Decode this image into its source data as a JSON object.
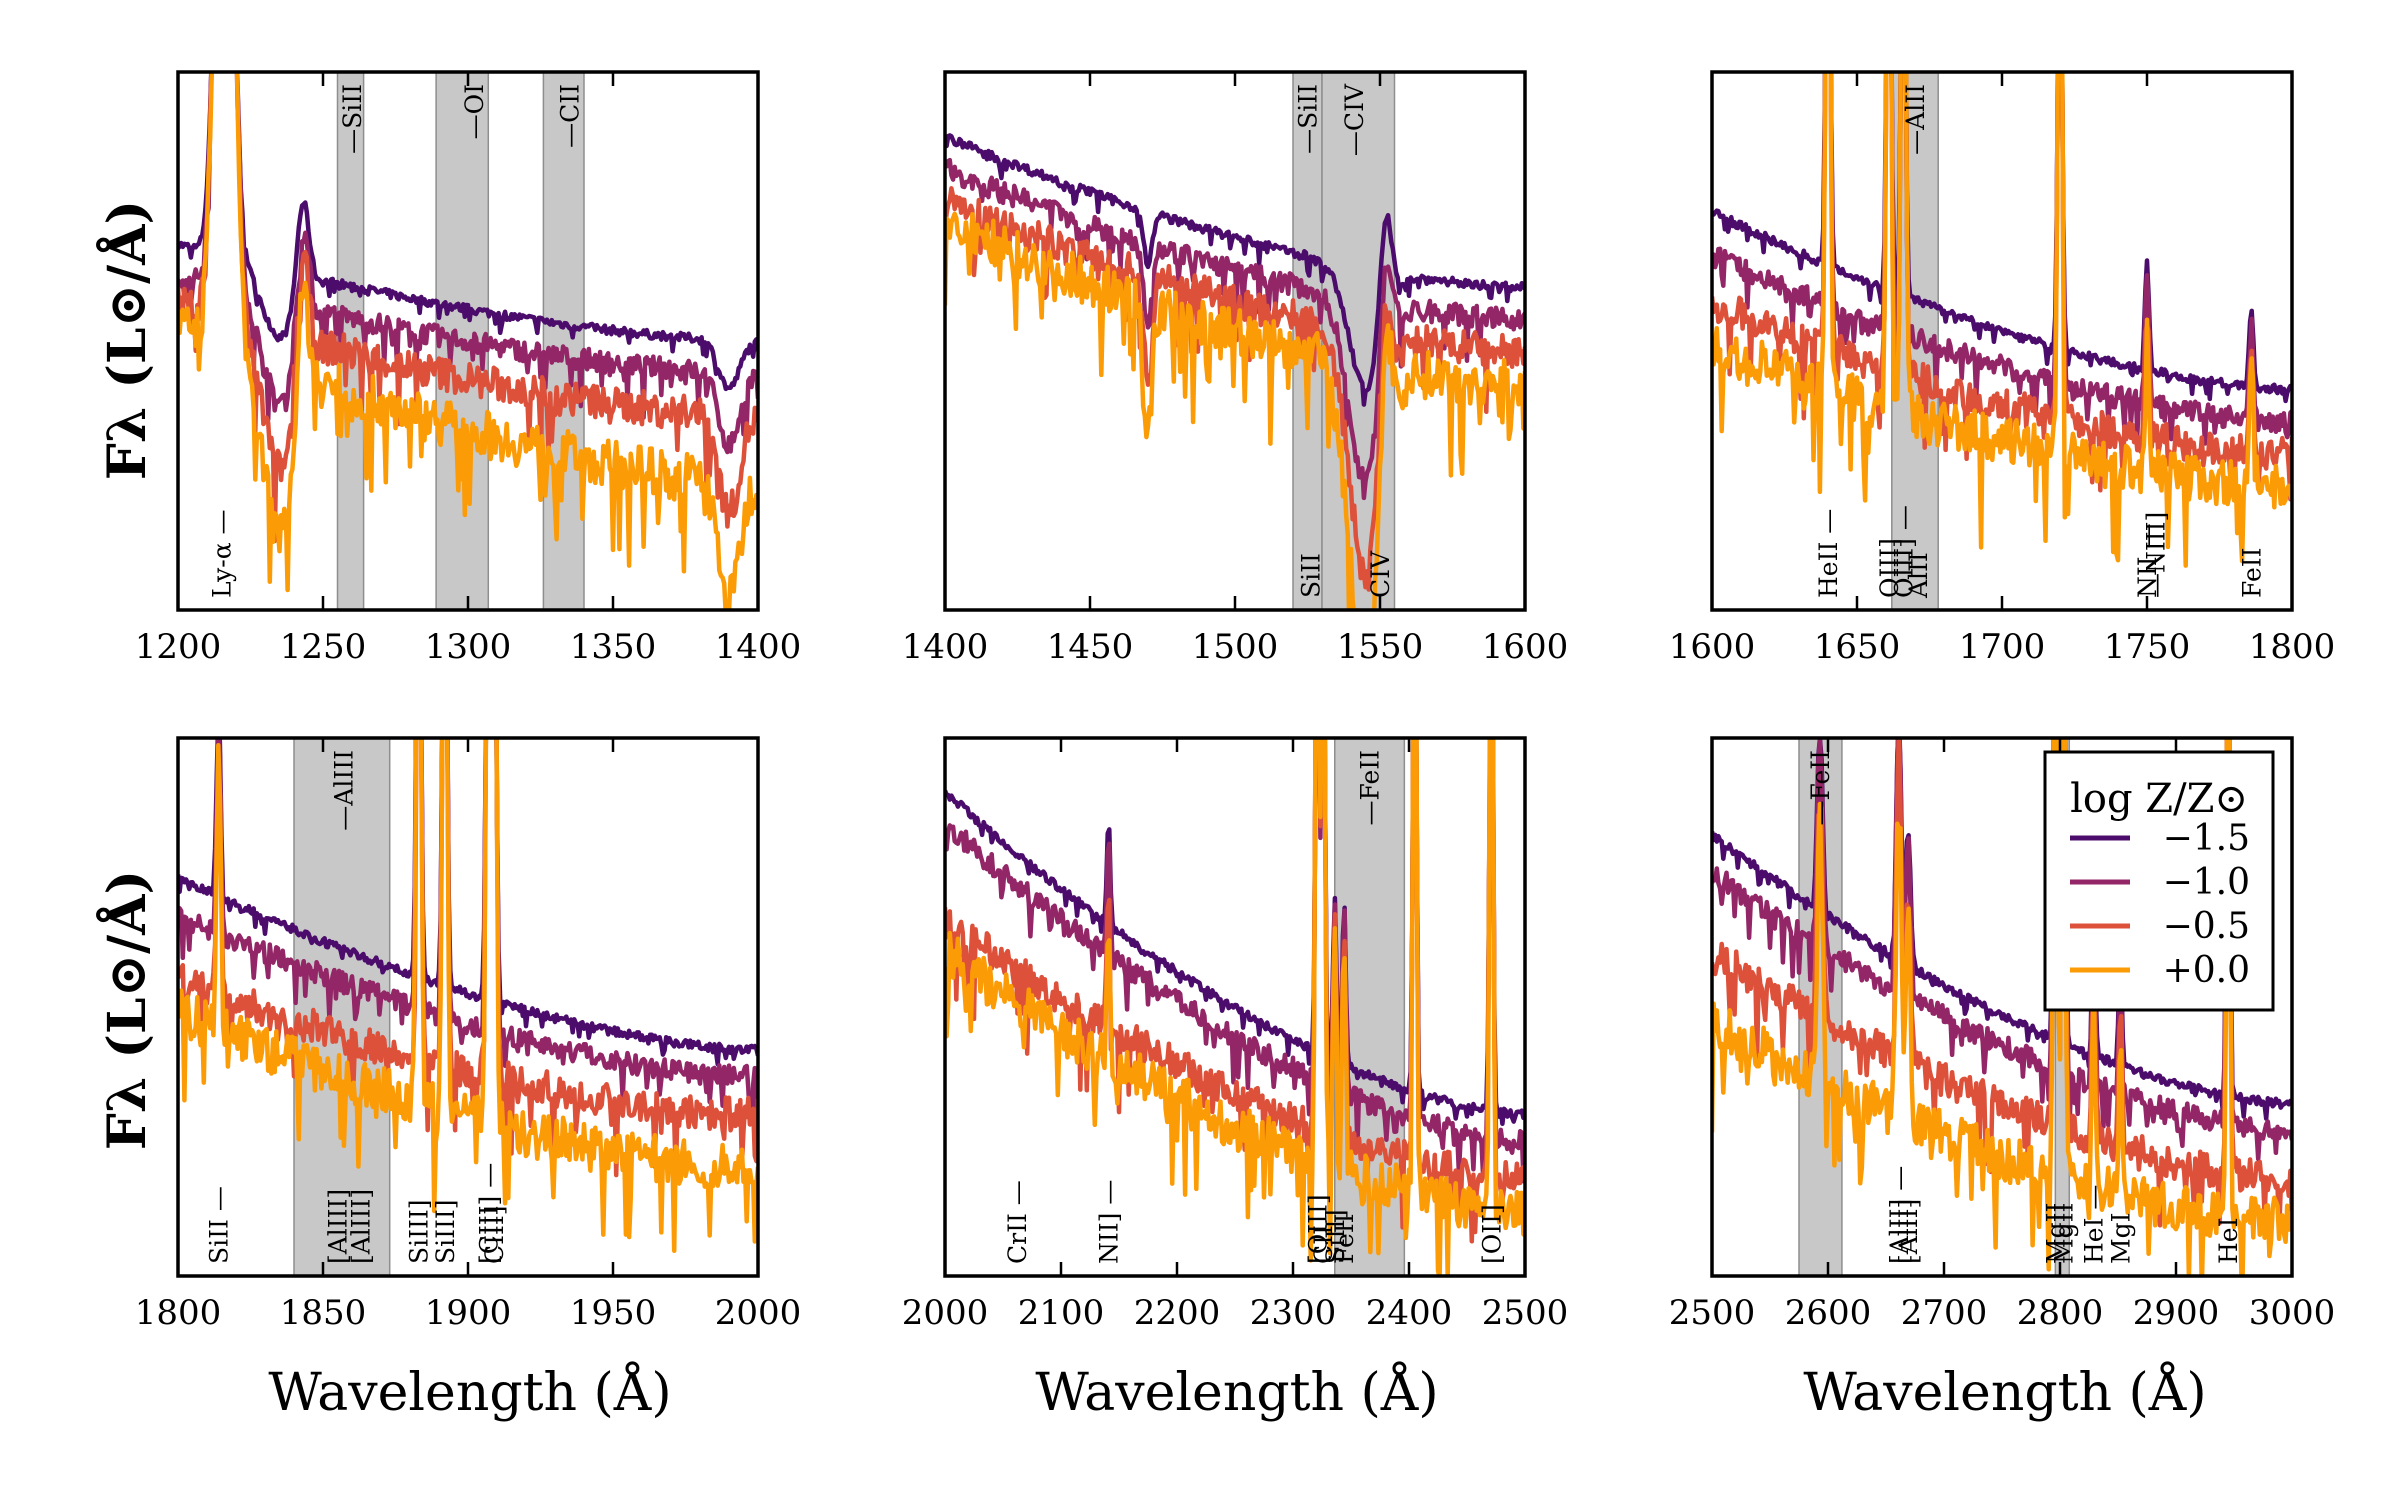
{
  "figure": {
    "y_axis_label": "Fλ (L⊙/Å)",
    "x_axis_label": "Wavelength (Å)"
  },
  "legend": {
    "title": "log Z/Z⊙",
    "entries": [
      {
        "label": "−1.5",
        "color": "#4b0c6b"
      },
      {
        "label": "−1.0",
        "color": "#932667"
      },
      {
        "label": "−0.5",
        "color": "#dd513a"
      },
      {
        "label": "+0.0",
        "color": "#fb9b06"
      }
    ]
  },
  "chart_data": [
    {
      "type": "line",
      "panel": 1,
      "xlim": [
        1200,
        1400
      ],
      "ylim": [
        0,
        1
      ],
      "xticks": [
        "1200",
        "1250",
        "1300",
        "1350",
        "1400"
      ],
      "bands": [
        [
          1255,
          1264
        ],
        [
          1289,
          1307
        ],
        [
          1326,
          1340
        ]
      ],
      "top_labels": [
        {
          "x": 1260,
          "text": "—SiII"
        },
        {
          "x": 1302,
          "text": "—OI"
        },
        {
          "x": 1335,
          "text": "—CII"
        }
      ],
      "bottom_labels": [
        {
          "x": 1215,
          "text": "Ly-α —"
        }
      ],
      "series": [
        {
          "name": "−1.5",
          "start": 0.68,
          "end": 0.5
        },
        {
          "name": "−1.0",
          "start": 0.62,
          "end": 0.44
        },
        {
          "name": "−0.5",
          "start": 0.57,
          "end": 0.36
        },
        {
          "name": "+0.0",
          "start": 0.53,
          "end": 0.24
        }
      ],
      "features": [
        {
          "x": 1216,
          "height": 1.2,
          "width": 4
        },
        {
          "x": 1235,
          "height": -0.25,
          "width": 8
        },
        {
          "x": 1243,
          "height": 0.18,
          "width": 3
        },
        {
          "x": 1390,
          "height": -0.18,
          "width": 5
        }
      ]
    },
    {
      "type": "line",
      "panel": 2,
      "xlim": [
        1400,
        1600
      ],
      "ylim": [
        0,
        1
      ],
      "xticks": [
        "1400",
        "1450",
        "1500",
        "1550",
        "1600"
      ],
      "bands": [
        [
          1520,
          1530
        ],
        [
          1530,
          1555
        ]
      ],
      "top_labels": [
        {
          "x": 1525,
          "text": "—SiII"
        },
        {
          "x": 1541,
          "text": "—CIV"
        }
      ],
      "bottom_labels": [
        {
          "x": 1526,
          "text": "SiII"
        },
        {
          "x": 1550,
          "text": "CIV"
        }
      ],
      "series": [
        {
          "name": "−1.5",
          "start": 0.88,
          "end": 0.6
        },
        {
          "name": "−1.0",
          "start": 0.82,
          "end": 0.54
        },
        {
          "name": "−0.5",
          "start": 0.76,
          "end": 0.48
        },
        {
          "name": "+0.0",
          "start": 0.72,
          "end": 0.42
        }
      ],
      "features": [
        {
          "x": 1545,
          "height": -0.45,
          "width": 8
        },
        {
          "x": 1552,
          "height": 0.2,
          "width": 3
        },
        {
          "x": 1470,
          "height": -0.2,
          "width": 2
        }
      ]
    },
    {
      "type": "line",
      "panel": 3,
      "xlim": [
        1600,
        1800
      ],
      "ylim": [
        0,
        1
      ],
      "xticks": [
        "1600",
        "1650",
        "1700",
        "1750",
        "1800"
      ],
      "bands": [
        [
          1662,
          1678
        ]
      ],
      "top_labels": [
        {
          "x": 1670,
          "text": "—AlII"
        }
      ],
      "bottom_labels": [
        {
          "x": 1640,
          "text": "HeII —"
        },
        {
          "x": 1661,
          "text": "OIII]"
        },
        {
          "x": 1666,
          "text": "OIII] —"
        },
        {
          "x": 1671,
          "text": "AlII"
        },
        {
          "x": 1750,
          "text": "NII —"
        },
        {
          "x": 1753,
          "text": "—NIII]"
        },
        {
          "x": 1786,
          "text": "FeII"
        }
      ],
      "series": [
        {
          "name": "−1.5",
          "start": 0.74,
          "end": 0.41
        },
        {
          "name": "−1.0",
          "start": 0.66,
          "end": 0.35
        },
        {
          "name": "−0.5",
          "start": 0.57,
          "end": 0.29
        },
        {
          "name": "+0.0",
          "start": 0.49,
          "end": 0.23
        }
      ],
      "features": [
        {
          "x": 1640,
          "height": 1.0,
          "width": 1
        },
        {
          "x": 1661,
          "height": 1.0,
          "width": 1
        },
        {
          "x": 1666,
          "height": 1.0,
          "width": 1
        },
        {
          "x": 1720,
          "height": 0.9,
          "width": 1
        },
        {
          "x": 1750,
          "height": 0.2,
          "width": 1
        },
        {
          "x": 1786,
          "height": 0.15,
          "width": 1
        }
      ]
    },
    {
      "type": "line",
      "panel": 4,
      "xlim": [
        1800,
        2000
      ],
      "ylim": [
        0,
        1
      ],
      "xticks": [
        "1800",
        "1850",
        "1900",
        "1950",
        "2000"
      ],
      "bands": [
        [
          1840,
          1873
        ]
      ],
      "top_labels": [
        {
          "x": 1857,
          "text": "—AlIII"
        }
      ],
      "bottom_labels": [
        {
          "x": 1814,
          "text": "SiII —"
        },
        {
          "x": 1855,
          "text": "[AlIII]"
        },
        {
          "x": 1863,
          "text": "[AlIII]"
        },
        {
          "x": 1883,
          "text": "SiIII]"
        },
        {
          "x": 1892,
          "text": "SiIII]"
        },
        {
          "x": 1907,
          "text": "[CIII] —"
        },
        {
          "x": 1909,
          "text": "CIII]"
        }
      ],
      "series": [
        {
          "name": "−1.5",
          "start": 0.74,
          "end": 0.42
        },
        {
          "name": "−1.0",
          "start": 0.67,
          "end": 0.37
        },
        {
          "name": "−0.5",
          "start": 0.55,
          "end": 0.3
        },
        {
          "name": "+0.0",
          "start": 0.49,
          "end": 0.2
        }
      ],
      "features": [
        {
          "x": 1814,
          "height": 0.35,
          "width": 1
        },
        {
          "x": 1883,
          "height": 1.0,
          "width": 1
        },
        {
          "x": 1892,
          "height": 1.0,
          "width": 1
        },
        {
          "x": 1907,
          "height": 1.0,
          "width": 1
        },
        {
          "x": 1909,
          "height": 1.0,
          "width": 1
        }
      ]
    },
    {
      "type": "line",
      "panel": 5,
      "xlim": [
        2000,
        2500
      ],
      "ylim": [
        0,
        1
      ],
      "xticks": [
        "2000",
        "2100",
        "2200",
        "2300",
        "2400",
        "2500"
      ],
      "bands": [
        [
          2336,
          2396
        ]
      ],
      "top_labels": [
        {
          "x": 2366,
          "text": "—FeII"
        }
      ],
      "bottom_labels": [
        {
          "x": 2062,
          "text": "CrII —"
        },
        {
          "x": 2141,
          "text": "NII] —"
        },
        {
          "x": 2321,
          "text": "[OIII]"
        },
        {
          "x": 2326,
          "text": "CII"
        },
        {
          "x": 2336,
          "text": "SiII]"
        },
        {
          "x": 2344,
          "text": "FeII"
        },
        {
          "x": 2471,
          "text": "[OII]"
        }
      ],
      "series": [
        {
          "name": "−1.5",
          "start": 0.9,
          "end": 0.3
        },
        {
          "name": "−1.0",
          "start": 0.84,
          "end": 0.25
        },
        {
          "name": "−0.5",
          "start": 0.66,
          "end": 0.18
        },
        {
          "name": "+0.0",
          "start": 0.6,
          "end": 0.12
        }
      ],
      "features": [
        {
          "x": 2141,
          "height": 0.2,
          "width": 2
        },
        {
          "x": 2321,
          "height": 1.0,
          "width": 2
        },
        {
          "x": 2326,
          "height": 1.0,
          "width": 2
        },
        {
          "x": 2336,
          "height": 0.3,
          "width": 2
        },
        {
          "x": 2344,
          "height": 0.3,
          "width": 2
        },
        {
          "x": 2405,
          "height": 1.0,
          "width": 2
        },
        {
          "x": 2471,
          "height": 1.0,
          "width": 2
        }
      ]
    },
    {
      "type": "line",
      "panel": 6,
      "xlim": [
        2500,
        3000
      ],
      "ylim": [
        0,
        1
      ],
      "xticks": [
        "2500",
        "2600",
        "2700",
        "2800",
        "2900",
        "3000"
      ],
      "bands": [
        [
          2575,
          2612
        ],
        [
          2796,
          2808
        ]
      ],
      "top_labels": [
        {
          "x": 2593,
          "text": "—FeII"
        }
      ],
      "bottom_labels": [
        {
          "x": 2661,
          "text": "[AlII] —"
        },
        {
          "x": 2669,
          "text": "[AlII]"
        },
        {
          "x": 2796,
          "text": "MgII"
        },
        {
          "x": 2803,
          "text": "MgII"
        },
        {
          "x": 2829,
          "text": "HeI —"
        },
        {
          "x": 2852,
          "text": "MgI"
        },
        {
          "x": 2945,
          "text": "HeI"
        }
      ],
      "series": [
        {
          "name": "−1.5",
          "start": 0.82,
          "end": 0.32
        },
        {
          "name": "−1.0",
          "start": 0.75,
          "end": 0.27
        },
        {
          "name": "−0.5",
          "start": 0.6,
          "end": 0.18
        },
        {
          "name": "+0.0",
          "start": 0.47,
          "end": 0.1
        }
      ],
      "features": [
        {
          "x": 2593,
          "height": 0.35,
          "width": 3
        },
        {
          "x": 2661,
          "height": 0.45,
          "width": 3
        },
        {
          "x": 2669,
          "height": 0.25,
          "width": 3
        },
        {
          "x": 2796,
          "height": 1.0,
          "width": 2
        },
        {
          "x": 2803,
          "height": 1.0,
          "width": 2
        },
        {
          "x": 2829,
          "height": 0.25,
          "width": 2
        },
        {
          "x": 2852,
          "height": 0.2,
          "width": 2
        },
        {
          "x": 2945,
          "height": 0.9,
          "width": 2
        }
      ]
    }
  ]
}
